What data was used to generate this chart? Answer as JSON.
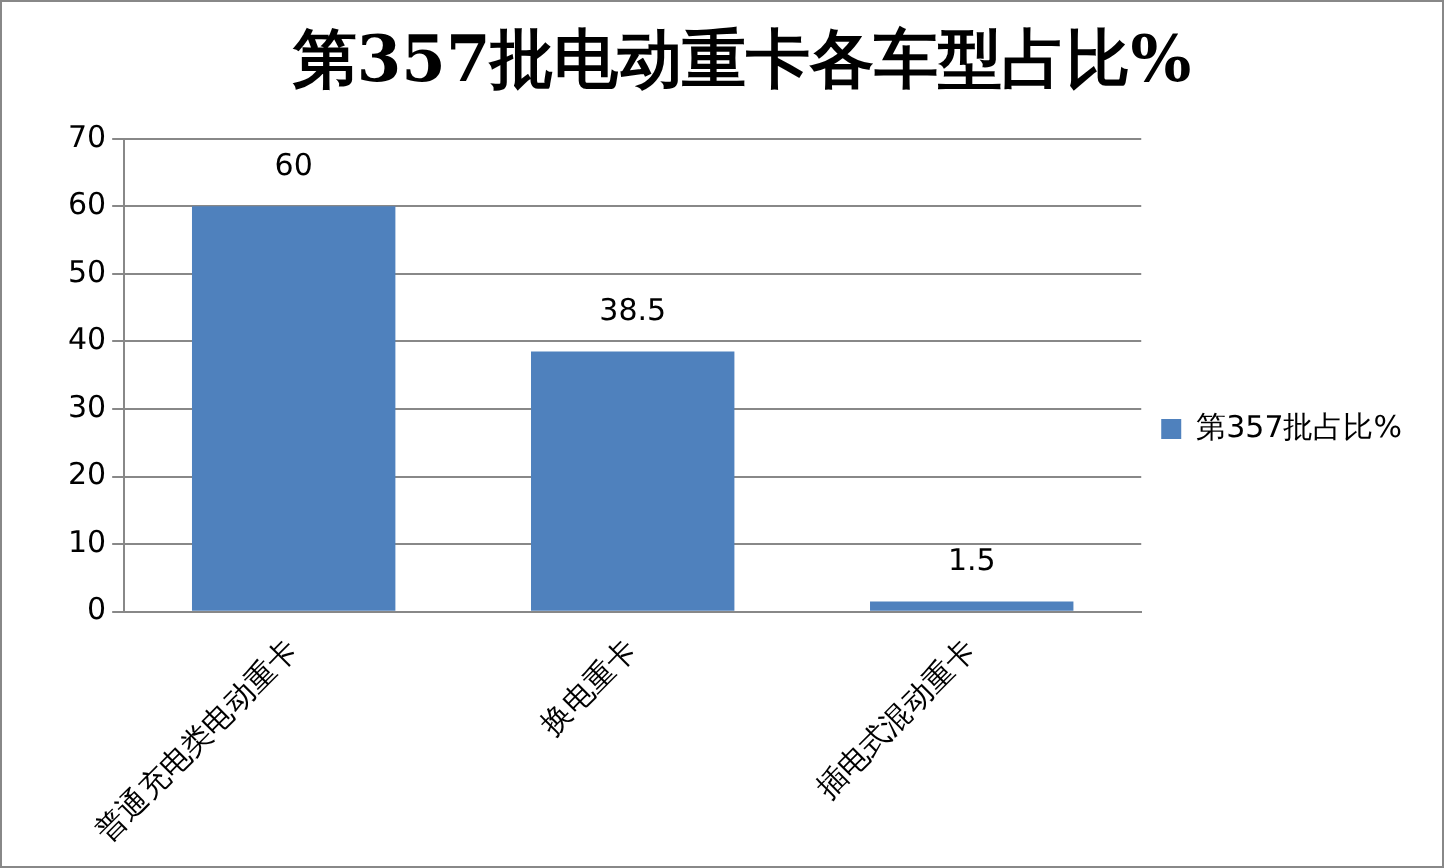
{
  "chart_data": {
    "type": "bar",
    "title": "第357批电动重卡各车型占比%",
    "categories": [
      "普通充电类电动重卡",
      "换电重卡",
      "插电式混动重卡"
    ],
    "series": [
      {
        "name": "第357批占比%",
        "color": "#4f81bd",
        "values": [
          60,
          38.5,
          1.5
        ]
      }
    ],
    "ylim": [
      0,
      70
    ],
    "yticks": [
      0,
      10,
      20,
      30,
      40,
      50,
      60,
      70
    ],
    "grid": "y",
    "legend": "right",
    "data_labels": true
  }
}
